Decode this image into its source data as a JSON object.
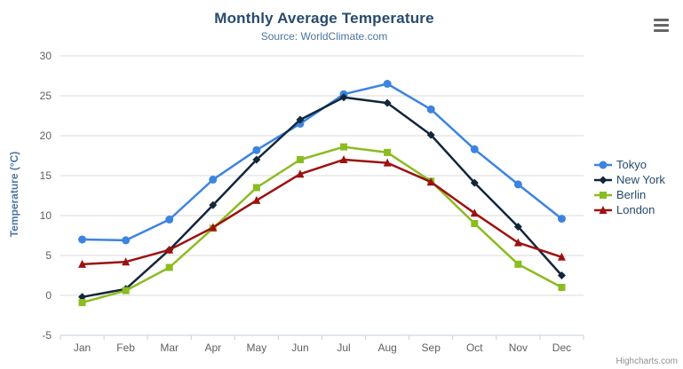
{
  "chart_data": {
    "type": "line",
    "title": "Monthly Average Temperature",
    "subtitle": "Source: WorldClimate.com",
    "xlabel": "",
    "ylabel": "Temperature (°C)",
    "categories": [
      "Jan",
      "Feb",
      "Mar",
      "Apr",
      "May",
      "Jun",
      "Jul",
      "Aug",
      "Sep",
      "Oct",
      "Nov",
      "Dec"
    ],
    "series": [
      {
        "name": "Tokyo",
        "color": "#3c84e0",
        "marker": "circle",
        "values": [
          7.0,
          6.9,
          9.5,
          14.5,
          18.2,
          21.5,
          25.2,
          26.5,
          23.3,
          18.3,
          13.9,
          9.6
        ]
      },
      {
        "name": "New York",
        "color": "#12263c",
        "marker": "diamond",
        "values": [
          -0.2,
          0.8,
          5.7,
          11.3,
          17.0,
          22.0,
          24.8,
          24.1,
          20.1,
          14.1,
          8.6,
          2.5
        ]
      },
      {
        "name": "Berlin",
        "color": "#8bbc21",
        "marker": "square",
        "values": [
          -0.9,
          0.6,
          3.5,
          8.4,
          13.5,
          17.0,
          18.6,
          17.9,
          14.3,
          9.0,
          3.9,
          1.0
        ]
      },
      {
        "name": "London",
        "color": "#9d1111",
        "marker": "triangle",
        "values": [
          3.9,
          4.2,
          5.7,
          8.5,
          11.9,
          15.2,
          17.0,
          16.6,
          14.2,
          10.3,
          6.6,
          4.8
        ]
      }
    ],
    "ylim": [
      -5,
      30
    ],
    "yticks": [
      -5,
      0,
      5,
      10,
      15,
      20,
      25,
      30
    ],
    "grid": true,
    "legend_position": "right"
  },
  "theme": {
    "title_color": "#274b6d",
    "subtitle_color": "#4d759e",
    "axis_label_color": "#606060",
    "axis_title_color": "#4d759e",
    "gridline_color": "#d8d8d8",
    "axis_line_color": "#c0d0e0",
    "legend_text_color": "#274b6d",
    "credit_color": "#909090",
    "menu_icon_color": "#666666"
  },
  "icons": {
    "menu": "hamburger-menu"
  },
  "credit_label": "Highcharts.com"
}
